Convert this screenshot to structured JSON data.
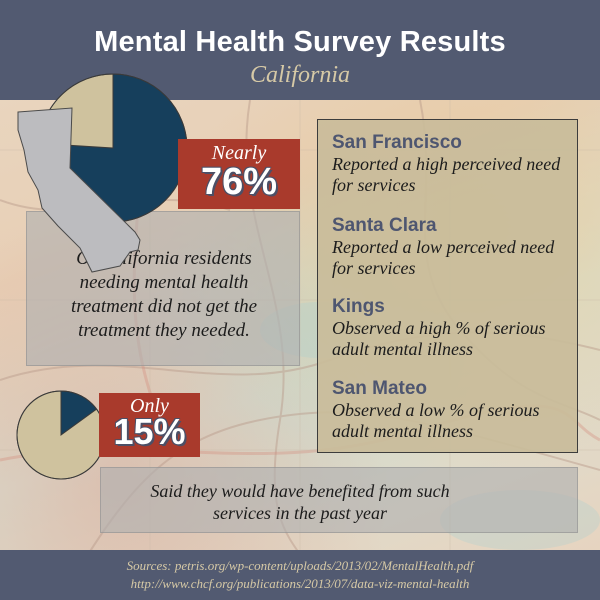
{
  "header": {
    "title": "Mental Health Survey Results",
    "subtitle": "California"
  },
  "stats": [
    {
      "qualifier": "Nearly",
      "percent_label": "76%",
      "description": "Of California residents needing mental health treatment did not get the treatment they needed."
    },
    {
      "qualifier": "Only",
      "percent_label": "15%",
      "description": "Said they would have benefited from such services in the past year"
    }
  ],
  "counties": [
    {
      "name": "San Francisco",
      "description": "Reported a high perceived need for services"
    },
    {
      "name": "Santa Clara",
      "description": "Reported a low perceived need for services"
    },
    {
      "name": "Kings",
      "description": "Observed a high % of serious adult mental illness"
    },
    {
      "name": "San Mateo",
      "description": "Observed a low % of serious adult mental illness"
    }
  ],
  "chart_data": [
    {
      "type": "pie",
      "slices": [
        {
          "value": 76,
          "color": "#163f5c"
        },
        {
          "value": 24,
          "color": "#cfc29e"
        }
      ]
    },
    {
      "type": "pie",
      "slices": [
        {
          "value": 15,
          "color": "#163f5c"
        },
        {
          "value": 85,
          "color": "#cfc29e"
        }
      ]
    }
  ],
  "colors": {
    "header_bg": "#525a71",
    "accent_red": "#a93a2c",
    "pie_dark": "#163f5c",
    "pie_light": "#cfc29e",
    "tan_panel": "#c9bc9a"
  },
  "footer": {
    "line1": "Sources: petris.org/wp-content/uploads/2013/02/MentalHealth.pdf",
    "line2": "http://www.chcf.org/publications/2013/07/data-viz-mental-health"
  }
}
